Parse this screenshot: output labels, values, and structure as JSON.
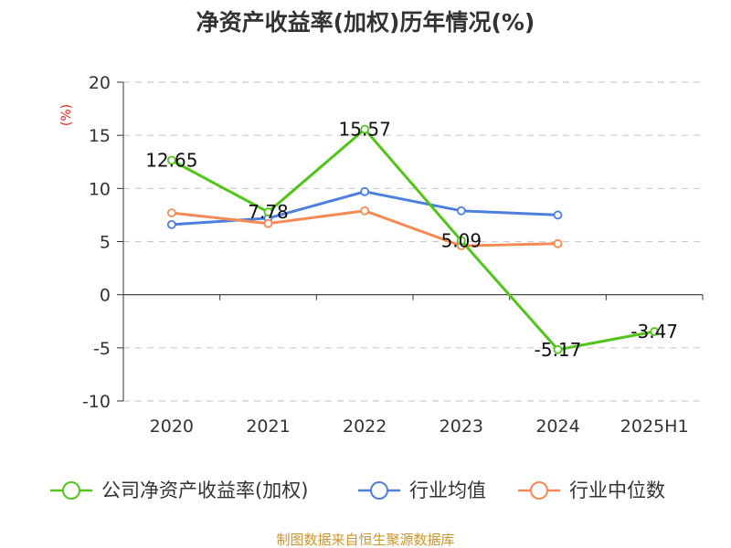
{
  "chart_data": {
    "type": "line",
    "title": "净资产收益率(加权)历年情况(%)",
    "ylabel": "(%)",
    "categories": [
      "2020",
      "2021",
      "2022",
      "2023",
      "2024",
      "2025H1"
    ],
    "ylim": [
      -10,
      20
    ],
    "yticks": [
      20,
      15,
      10,
      5,
      0,
      -5,
      -10
    ],
    "grid": true,
    "legend_position": "bottom",
    "series": [
      {
        "name": "公司净资产收益率(加权)",
        "color": "#52c41a",
        "values": [
          12.65,
          7.78,
          15.57,
          5.09,
          -5.17,
          -3.47
        ],
        "labels": [
          "12.65",
          "7.78",
          "15.57",
          "5.09",
          "-5.17",
          "-3.47"
        ]
      },
      {
        "name": "行业均值",
        "color": "#4e7fdc",
        "values": [
          6.6,
          7.2,
          9.7,
          7.9,
          7.5,
          null
        ]
      },
      {
        "name": "行业中位数",
        "color": "#f58a55",
        "values": [
          7.7,
          6.7,
          7.9,
          4.6,
          4.8,
          null
        ]
      }
    ]
  },
  "source": "制图数据来自恒生聚源数据库"
}
